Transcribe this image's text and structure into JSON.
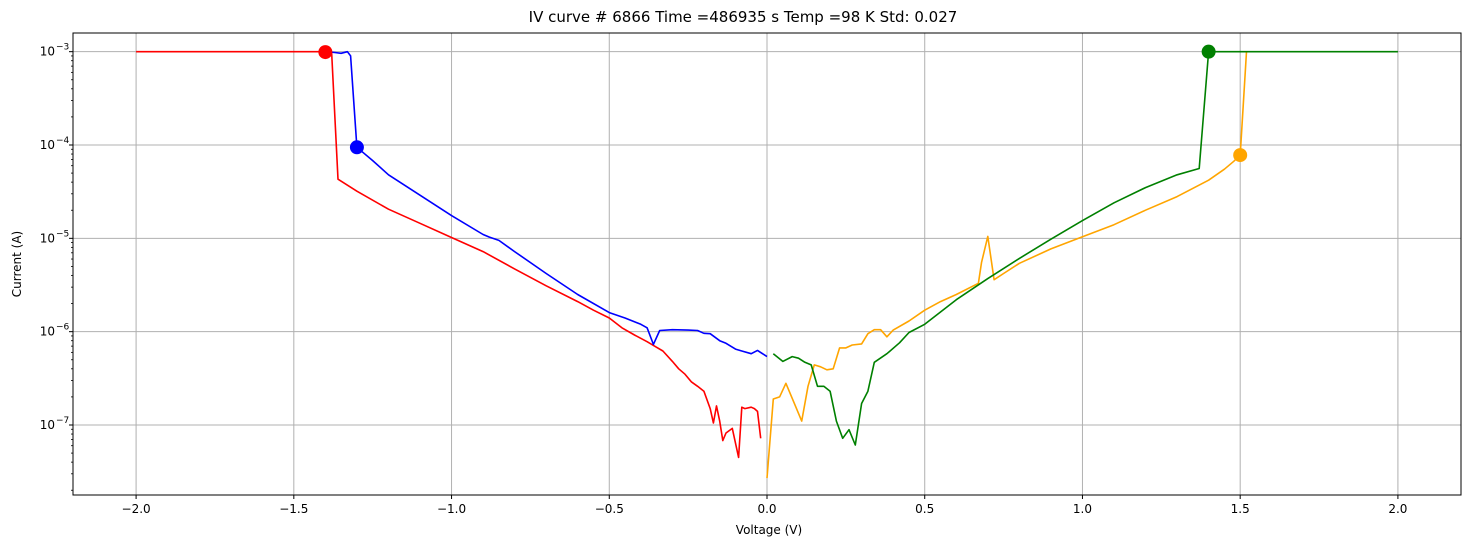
{
  "chart_data": {
    "type": "line",
    "title": "IV curve # 6866  Time =486935 s  Temp =98 K Std: 0.027",
    "xlabel": "Voltage (V)",
    "ylabel": "Current (A)",
    "xlim": [
      -2.2,
      2.2
    ],
    "ylim_log10": [
      -7.75,
      -2.8
    ],
    "y_scale": "log",
    "grid": true,
    "x_ticks": [
      -2.0,
      -1.5,
      -1.0,
      -0.5,
      0.0,
      0.5,
      1.0,
      1.5,
      2.0
    ],
    "x_tick_labels": [
      "−2.0",
      "−1.5",
      "−1.0",
      "−0.5",
      "0.0",
      "0.5",
      "1.0",
      "1.5",
      "2.0"
    ],
    "y_ticks_exp": [
      -3,
      -4,
      -5,
      -6,
      -7
    ],
    "y_tick_base": "10",
    "y_tick_exponents": [
      "−3",
      "−4",
      "−5",
      "−6",
      "−7"
    ],
    "series": [
      {
        "color": "#ff0000",
        "x": [
          -2.0,
          -1.98,
          -1.9,
          -1.8,
          -1.7,
          -1.6,
          -1.5,
          -1.45,
          -1.4,
          -1.38,
          -1.36,
          -1.3,
          -1.2,
          -1.1,
          -1.0,
          -0.9,
          -0.8,
          -0.7,
          -0.6,
          -0.55,
          -0.5,
          -0.46,
          -0.42,
          -0.38,
          -0.35,
          -0.33,
          -0.3,
          -0.28,
          -0.26,
          -0.24,
          -0.22,
          -0.2,
          -0.18,
          -0.17,
          -0.16,
          -0.15,
          -0.14,
          -0.13,
          -0.11,
          -0.09,
          -0.08,
          -0.07,
          -0.05,
          -0.04,
          -0.03,
          -0.02
        ],
        "y": [
          0.001,
          0.001,
          0.001,
          0.001,
          0.001,
          0.001,
          0.001,
          0.001,
          0.001,
          0.00095,
          4.3e-05,
          3.2e-05,
          2.05e-05,
          1.45e-05,
          1.02e-05,
          7.2e-06,
          4.7e-06,
          3.1e-06,
          2.1e-06,
          1.7e-06,
          1.4e-06,
          1.1e-06,
          9.2e-07,
          7.8e-07,
          6.8e-07,
          6.2e-07,
          4.8e-07,
          4e-07,
          3.5e-07,
          2.9e-07,
          2.6e-07,
          2.3e-07,
          1.5e-07,
          1.05e-07,
          1.6e-07,
          1.1e-07,
          6.8e-08,
          8.2e-08,
          9.2e-08,
          4.5e-08,
          1.55e-07,
          1.5e-07,
          1.55e-07,
          1.5e-07,
          1.4e-07,
          7.2e-08
        ]
      },
      {
        "color": "#0000ff",
        "x": [
          -1.4,
          -1.37,
          -1.35,
          -1.33,
          -1.32,
          -1.3,
          -1.25,
          -1.2,
          -1.1,
          -1.0,
          -0.9,
          -0.88,
          -0.85,
          -0.8,
          -0.7,
          -0.6,
          -0.5,
          -0.45,
          -0.4,
          -0.38,
          -0.36,
          -0.34,
          -0.3,
          -0.25,
          -0.22,
          -0.2,
          -0.18,
          -0.15,
          -0.13,
          -0.1,
          -0.08,
          -0.05,
          -0.03,
          0.0
        ],
        "y": [
          0.001,
          0.00098,
          0.00096,
          0.001,
          0.0009,
          9.45e-05,
          6.8e-05,
          4.8e-05,
          2.9e-05,
          1.75e-05,
          1.1e-05,
          1.03e-05,
          9.5e-06,
          7.2e-06,
          4.2e-06,
          2.5e-06,
          1.6e-06,
          1.4e-06,
          1.2e-06,
          1.1e-06,
          7.3e-07,
          1.03e-06,
          1.05e-06,
          1.04e-06,
          1.03e-06,
          9.6e-07,
          9.5e-07,
          8e-07,
          7.5e-07,
          6.5e-07,
          6.2e-07,
          5.8e-07,
          6.3e-07,
          5.4e-07
        ]
      },
      {
        "color": "#ffa500",
        "x": [
          0.0,
          0.02,
          0.04,
          0.06,
          0.09,
          0.11,
          0.13,
          0.15,
          0.17,
          0.19,
          0.21,
          0.23,
          0.25,
          0.27,
          0.3,
          0.32,
          0.34,
          0.36,
          0.38,
          0.4,
          0.45,
          0.5,
          0.55,
          0.6,
          0.67,
          0.68,
          0.7,
          0.72,
          0.75,
          0.8,
          0.9,
          1.0,
          1.1,
          1.2,
          1.3,
          1.4,
          1.45,
          1.48,
          1.5,
          1.52
        ],
        "y": [
          2.7e-08,
          1.9e-07,
          2e-07,
          2.8e-07,
          1.6e-07,
          1.1e-07,
          2.6e-07,
          4.4e-07,
          4.2e-07,
          3.9e-07,
          4e-07,
          6.7e-07,
          6.7e-07,
          7.2e-07,
          7.4e-07,
          9.5e-07,
          1.05e-06,
          1.05e-06,
          8.8e-07,
          1.04e-06,
          1.3e-06,
          1.7e-06,
          2.1e-06,
          2.5e-06,
          3.3e-06,
          5.5e-06,
          1.05e-05,
          3.6e-06,
          4.2e-06,
          5.4e-06,
          7.7e-06,
          1.04e-05,
          1.4e-05,
          2e-05,
          2.8e-05,
          4.2e-05,
          5.5e-05,
          6.7e-05,
          7.8e-05,
          0.001
        ]
      },
      {
        "color": "#008000",
        "x": [
          0.02,
          0.05,
          0.08,
          0.1,
          0.12,
          0.14,
          0.16,
          0.18,
          0.2,
          0.22,
          0.24,
          0.26,
          0.28,
          0.3,
          0.32,
          0.34,
          0.38,
          0.42,
          0.45,
          0.5,
          0.6,
          0.7,
          0.8,
          0.9,
          1.0,
          1.1,
          1.2,
          1.3,
          1.37,
          1.4,
          1.5,
          1.6,
          1.7,
          1.8,
          1.9,
          2.0
        ],
        "y": [
          5.8e-07,
          4.8e-07,
          5.4e-07,
          5.2e-07,
          4.7e-07,
          4.4e-07,
          2.6e-07,
          2.6e-07,
          2.3e-07,
          1.1e-07,
          7.2e-08,
          8.9e-08,
          6.1e-08,
          1.7e-07,
          2.3e-07,
          4.7e-07,
          5.8e-07,
          7.6e-07,
          9.8e-07,
          1.2e-06,
          2.2e-06,
          3.7e-06,
          6.1e-06,
          9.8e-06,
          1.55e-05,
          2.4e-05,
          3.5e-05,
          4.8e-05,
          5.6e-05,
          0.001,
          0.001,
          0.001,
          0.001,
          0.001,
          0.001,
          0.001
        ]
      }
    ],
    "markers": [
      {
        "x": -1.4,
        "y": 0.00099,
        "color": "#ff0000"
      },
      {
        "x": -1.3,
        "y": 9.45e-05,
        "color": "#0000ff"
      },
      {
        "x": 1.4,
        "y": 0.001,
        "color": "#008000"
      },
      {
        "x": 1.5,
        "y": 7.8e-05,
        "color": "#ffa500"
      }
    ]
  }
}
